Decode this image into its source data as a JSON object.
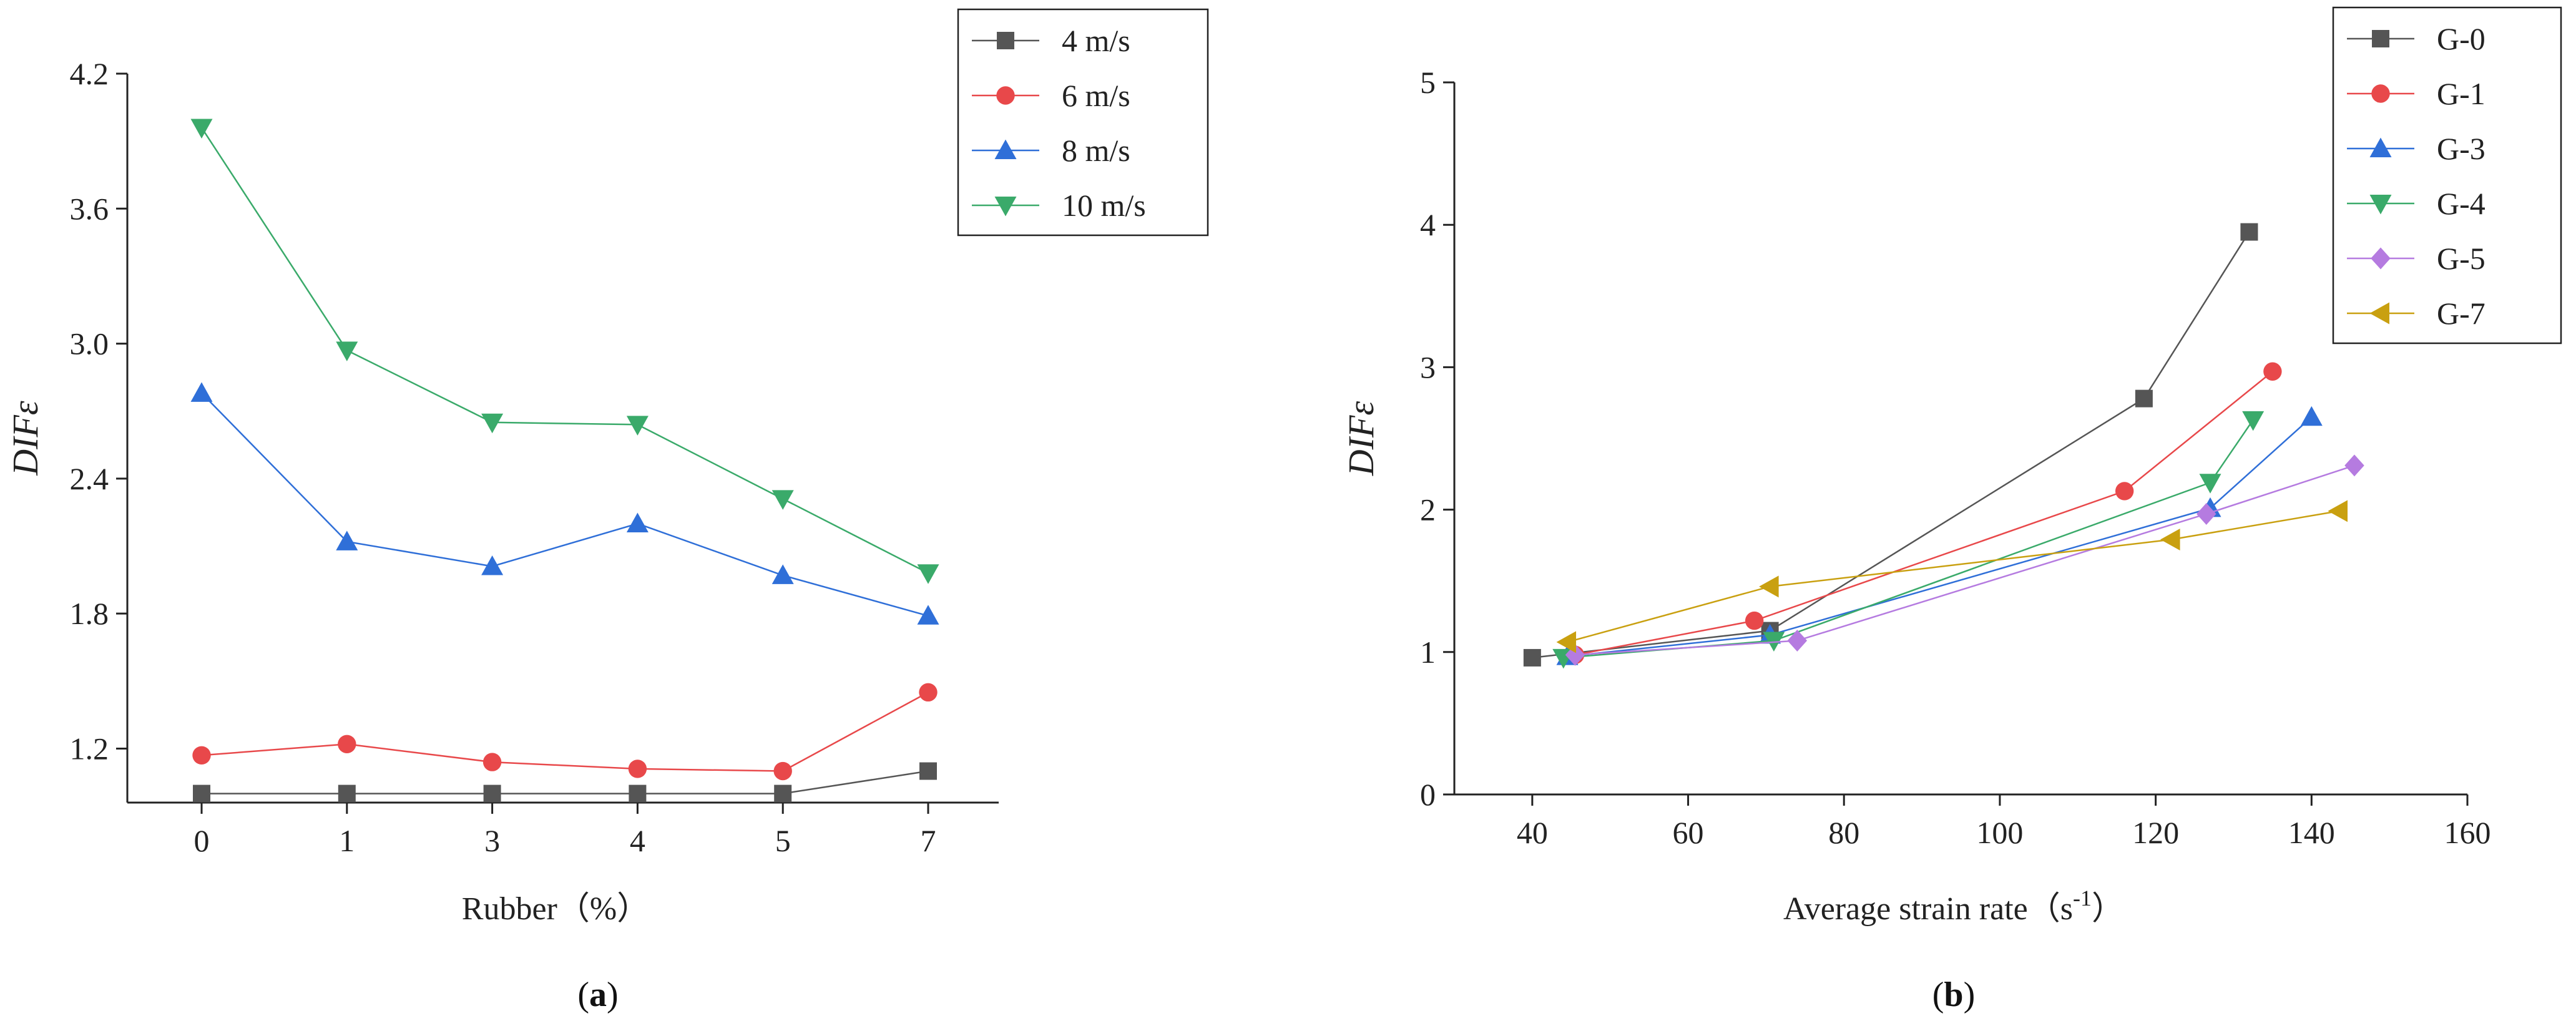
{
  "chart_data": [
    {
      "type": "line",
      "id": "a",
      "caption_open": "(",
      "caption_letter": "a",
      "caption_close": ")",
      "xlabel": "Rubber（%）",
      "ylabel": "DIFε",
      "categories": [
        "0",
        "1",
        "3",
        "4",
        "5",
        "7"
      ],
      "ylim": [
        0.96,
        4.2
      ],
      "yticks": [
        1.2,
        1.8,
        2.4,
        3.0,
        3.6,
        4.2
      ],
      "ytick_labels": [
        "1.2",
        "1.8",
        "2.4",
        "3.0",
        "3.6",
        "4.2"
      ],
      "legend_position": "top-right",
      "series": [
        {
          "name": "4 m/s",
          "color": "#555555",
          "marker": "square",
          "values": [
            1.0,
            1.0,
            1.0,
            1.0,
            1.0,
            1.1
          ]
        },
        {
          "name": "6 m/s",
          "color": "#e8484a",
          "marker": "circle",
          "values": [
            1.17,
            1.22,
            1.14,
            1.11,
            1.1,
            1.45
          ]
        },
        {
          "name": "8 m/s",
          "color": "#2f6fd8",
          "marker": "triangle-up",
          "values": [
            2.78,
            2.12,
            2.01,
            2.2,
            1.97,
            1.79
          ]
        },
        {
          "name": "10 m/s",
          "color": "#3aaa6a",
          "marker": "triangle-down",
          "values": [
            3.96,
            2.97,
            2.65,
            2.64,
            2.31,
            1.98
          ]
        }
      ]
    },
    {
      "type": "line",
      "id": "b",
      "caption_open": "(",
      "caption_letter": "b",
      "caption_close": ")",
      "xlabel": "Average strain rate（s",
      "xlabel_sup": "-1",
      "xlabel_close": "）",
      "ylabel": "DIFε",
      "xlim": [
        30,
        160
      ],
      "xticks": [
        40,
        60,
        80,
        100,
        120,
        140,
        160
      ],
      "xtick_labels": [
        "40",
        "60",
        "80",
        "100",
        "120",
        "140",
        "160"
      ],
      "ylim": [
        0,
        5
      ],
      "yticks": [
        0,
        1,
        2,
        3,
        4,
        5
      ],
      "ytick_labels": [
        "0",
        "1",
        "2",
        "3",
        "4",
        "5"
      ],
      "legend_position": "top-right",
      "series": [
        {
          "name": "G-0",
          "color": "#555555",
          "marker": "square",
          "x": [
            40,
            70.5,
            118.5,
            132
          ],
          "y": [
            0.96,
            1.15,
            2.78,
            3.95
          ]
        },
        {
          "name": "G-1",
          "color": "#e8484a",
          "marker": "circle",
          "x": [
            45.5,
            68.5,
            116,
            135
          ],
          "y": [
            0.98,
            1.22,
            2.13,
            2.97
          ]
        },
        {
          "name": "G-3",
          "color": "#2f6fd8",
          "marker": "triangle-up",
          "x": [
            44.5,
            70.5,
            127,
            140
          ],
          "y": [
            0.97,
            1.12,
            2.01,
            2.65
          ]
        },
        {
          "name": "G-4",
          "color": "#3aaa6a",
          "marker": "triangle-down",
          "x": [
            44,
            71,
            127,
            132.5
          ],
          "y": [
            0.96,
            1.08,
            2.19,
            2.63
          ]
        },
        {
          "name": "G-5",
          "color": "#b57be0",
          "marker": "diamond",
          "x": [
            45.5,
            74,
            126.5,
            145.5
          ],
          "y": [
            0.98,
            1.08,
            1.97,
            2.31
          ]
        },
        {
          "name": "G-7",
          "color": "#c9a010",
          "marker": "triangle-left",
          "x": [
            44.5,
            70.5,
            122,
            143.5
          ],
          "y": [
            1.07,
            1.46,
            1.79,
            1.99
          ]
        }
      ]
    }
  ]
}
